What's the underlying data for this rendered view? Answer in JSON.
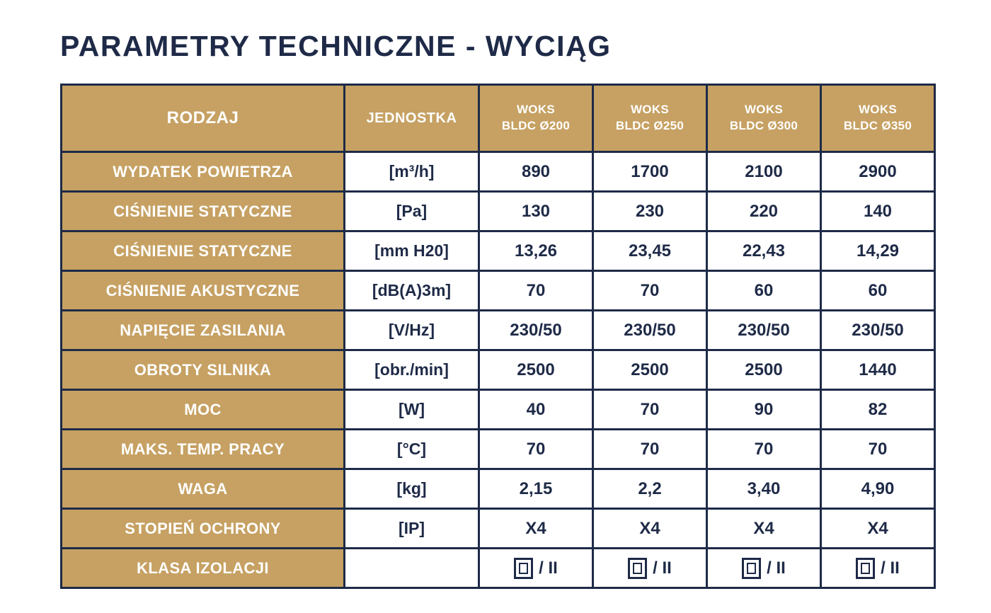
{
  "title": "PARAMETRY TECHNICZNE - WYCIĄG",
  "colors": {
    "accent_tan": "#C6A163",
    "navy": "#1E2A47",
    "cell_white": "#FFFFFF"
  },
  "table": {
    "header": {
      "rodzaj": "RODZAJ",
      "jednostka": "JEDNOSTKA",
      "products": [
        {
          "line1": "WOKS",
          "line2": "BLDC Ø200"
        },
        {
          "line1": "WOKS",
          "line2": "BLDC Ø250"
        },
        {
          "line1": "WOKS",
          "line2": "BLDC Ø300"
        },
        {
          "line1": "WOKS",
          "line2": "BLDC Ø350"
        }
      ]
    },
    "rows": [
      {
        "label": "WYDATEK POWIETRZA",
        "unit": "[m³/h]",
        "values": [
          "890",
          "1700",
          "2100",
          "2900"
        ]
      },
      {
        "label": "CIŚNIENIE STATYCZNE",
        "unit": "[Pa]",
        "values": [
          "130",
          "230",
          "220",
          "140"
        ]
      },
      {
        "label": "CIŚNIENIE STATYCZNE",
        "unit": "[mm H20]",
        "values": [
          "13,26",
          "23,45",
          "22,43",
          "14,29"
        ]
      },
      {
        "label": "CIŚNIENIE AKUSTYCZNE",
        "unit": "[dB(A)3m]",
        "values": [
          "70",
          "70",
          "60",
          "60"
        ]
      },
      {
        "label": "NAPIĘCIE ZASILANIA",
        "unit": "[V/Hz]",
        "values": [
          "230/50",
          "230/50",
          "230/50",
          "230/50"
        ]
      },
      {
        "label": "OBROTY SILNIKA",
        "unit": "[obr./min]",
        "values": [
          "2500",
          "2500",
          "2500",
          "1440"
        ]
      },
      {
        "label": "MOC",
        "unit": "[W]",
        "values": [
          "40",
          "70",
          "90",
          "82"
        ]
      },
      {
        "label": "MAKS. TEMP. PRACY",
        "unit": "[°C]",
        "values": [
          "70",
          "70",
          "70",
          "70"
        ]
      },
      {
        "label": "WAGA",
        "unit": "[kg]",
        "values": [
          "2,15",
          "2,2",
          "3,40",
          "4,90"
        ]
      },
      {
        "label": "STOPIEŃ OCHRONY",
        "unit": "[IP]",
        "values": [
          "X4",
          "X4",
          "X4",
          "X4"
        ]
      },
      {
        "label": "KLASA IZOLACJI",
        "unit": "",
        "values": [
          "/ II",
          "/ II",
          "/ II",
          "/ II"
        ],
        "symbol": "class-ii-double-insulation"
      }
    ]
  }
}
